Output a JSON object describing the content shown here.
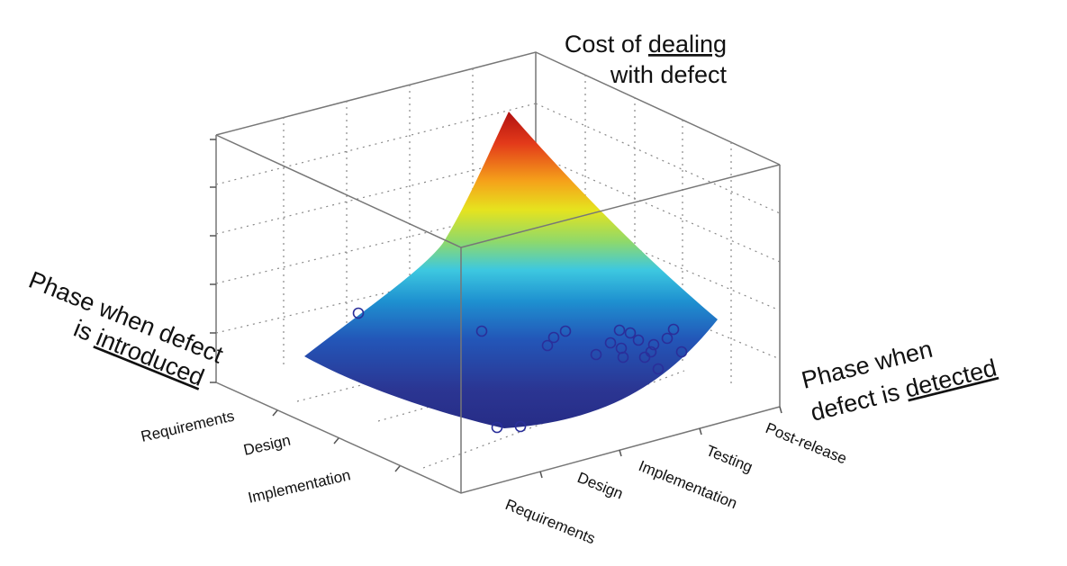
{
  "chart_data": {
    "type": "surface",
    "title": "",
    "zlabel": {
      "before": "Cost of ",
      "emph": "dealing",
      "line2": "with defect"
    },
    "ylabel": {
      "line1": "Phase when defect",
      "before": "is ",
      "emph": "introduced"
    },
    "xlabel": {
      "line1": "Phase when",
      "before": "defect is ",
      "emph": "detected"
    },
    "x_categories": [
      "Requirements",
      "Design",
      "Implementation",
      "Testing",
      "Post-release"
    ],
    "y_categories": [
      "Requirements",
      "Design",
      "Implementation"
    ],
    "zlim": [
      0,
      5
    ],
    "grid": true,
    "colormap": [
      "#2b2f8f",
      "#2356b8",
      "#1e90d0",
      "#3dc8e0",
      "#8fd96a",
      "#e6e31e",
      "#f5a21a",
      "#e33a1a",
      "#b01010"
    ],
    "surface_corners": [
      {
        "detected": "Requirements",
        "introduced": "Implementation",
        "cost": 0.8
      },
      {
        "detected": "Post-release",
        "introduced": "Implementation",
        "cost": 1.4
      },
      {
        "detected": "Post-release",
        "introduced": "Requirements",
        "cost": 5.0
      },
      {
        "detected": "Requirements",
        "introduced": "Requirements",
        "cost": 0.1
      }
    ]
  }
}
